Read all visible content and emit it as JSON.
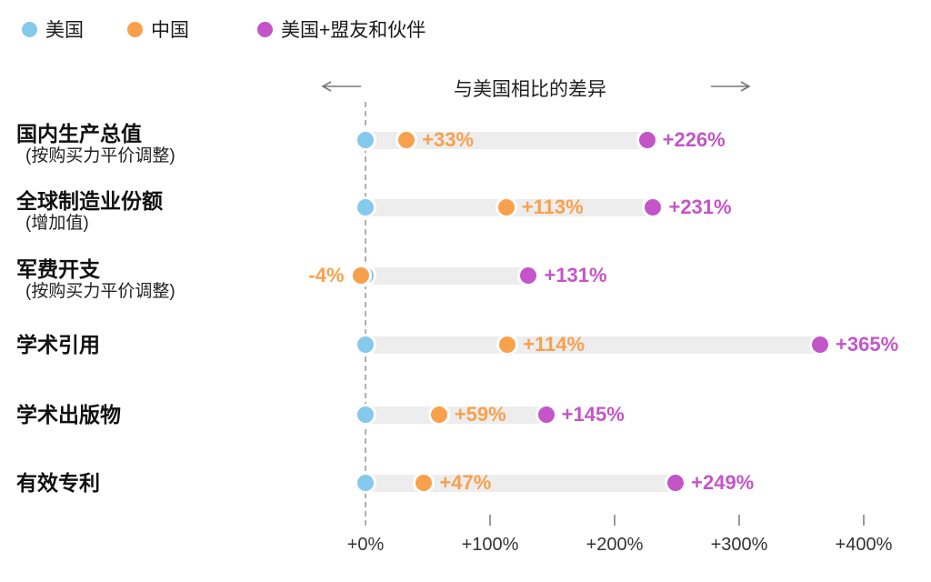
{
  "legend": {
    "items": [
      {
        "label": "美国",
        "color": "#85C9EC"
      },
      {
        "label": "中国",
        "color": "#F9A04C"
      },
      {
        "label": "美国+盟友和伙伴",
        "color": "#C455C8"
      }
    ]
  },
  "header": {
    "axis_title": "与美国相比的差异",
    "left_arrow_icon": "arrow-left",
    "right_arrow_icon": "arrow-right"
  },
  "chart_data": {
    "type": "scatter",
    "variant": "dumbbell-dot-plot",
    "title": "与美国相比的差异",
    "categories": [
      {
        "label": "国内生产总值",
        "sublabel": "(按购买力平价调整)"
      },
      {
        "label": "全球制造业份额",
        "sublabel": "(增加值)"
      },
      {
        "label": "军费开支",
        "sublabel": "(按购买力平价调整)"
      },
      {
        "label": "学术引用",
        "sublabel": ""
      },
      {
        "label": "学术出版物",
        "sublabel": ""
      },
      {
        "label": "有效专利",
        "sublabel": ""
      }
    ],
    "series": [
      {
        "name": "美国",
        "color": "#85C9EC",
        "values": [
          0,
          0,
          0,
          0,
          0,
          0
        ],
        "labels": [
          "",
          "",
          "",
          "",
          "",
          ""
        ]
      },
      {
        "name": "中国",
        "color": "#F9A04C",
        "values": [
          33,
          113,
          -4,
          114,
          59,
          47
        ],
        "labels": [
          "+33%",
          "+113%",
          "-4%",
          "+114%",
          "+59%",
          "+47%"
        ]
      },
      {
        "name": "美国+盟友和伙伴",
        "color": "#C455C8",
        "values": [
          226,
          231,
          131,
          365,
          145,
          249
        ],
        "labels": [
          "+226%",
          "+231%",
          "+131%",
          "+365%",
          "+145%",
          "+249%"
        ]
      }
    ],
    "x_axis": {
      "tick_values": [
        0,
        100,
        200,
        300,
        400
      ],
      "tick_labels": [
        "+0%",
        "+100%",
        "+200%",
        "+300%",
        "+400%"
      ],
      "xlim": [
        -60,
        455
      ],
      "baseline_value": 0
    },
    "bar_color": "#EDEDED",
    "grid": false,
    "legend_position": "top-left"
  }
}
